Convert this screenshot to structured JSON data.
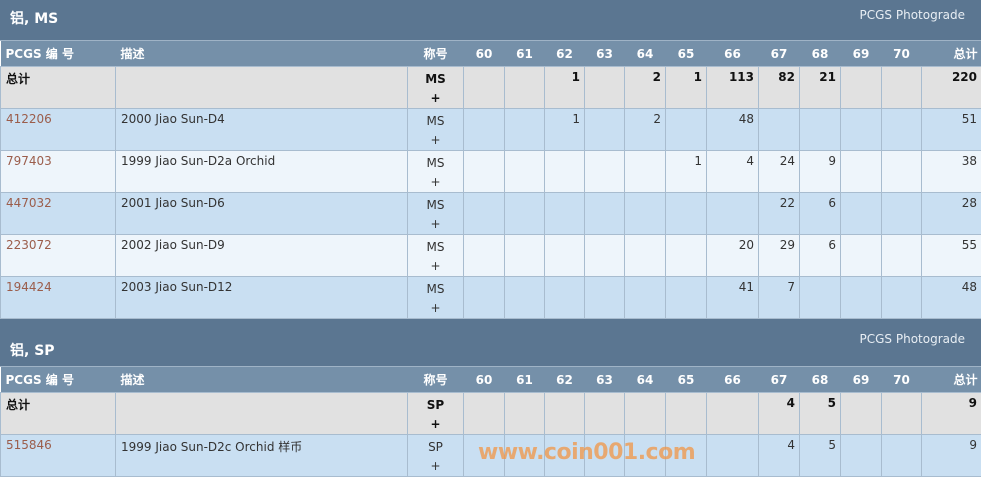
{
  "grade_columns": [
    "60",
    "61",
    "62",
    "63",
    "64",
    "65",
    "66",
    "67",
    "68",
    "69",
    "70"
  ],
  "headers": {
    "id": "PCGS 编 号",
    "desc": "描述",
    "designation": "称号",
    "total": "总计"
  },
  "sections": [
    {
      "title": "铝, MS",
      "photograde": "PCGS Photograde",
      "total_row": {
        "label": "总计",
        "designation": "MS",
        "plus": "+",
        "counts": [
          "",
          "",
          "1",
          "",
          "2",
          "1",
          "113",
          "82",
          "21",
          "",
          ""
        ],
        "total": "220"
      },
      "rows": [
        {
          "id": "412206",
          "desc": "2000 Jiao Sun-D4",
          "designation": "MS",
          "plus": "+",
          "counts": [
            "",
            "",
            "1",
            "",
            "2",
            "",
            "48",
            "",
            "",
            "",
            ""
          ],
          "total": "51"
        },
        {
          "id": "797403",
          "desc": "1999 Jiao Sun-D2a Orchid",
          "designation": "MS",
          "plus": "+",
          "counts": [
            "",
            "",
            "",
            "",
            "",
            "1",
            "4",
            "24",
            "9",
            "",
            ""
          ],
          "total": "38"
        },
        {
          "id": "447032",
          "desc": "2001 Jiao Sun-D6",
          "designation": "MS",
          "plus": "+",
          "counts": [
            "",
            "",
            "",
            "",
            "",
            "",
            "",
            "22",
            "6",
            "",
            ""
          ],
          "total": "28"
        },
        {
          "id": "223072",
          "desc": "2002 Jiao Sun-D9",
          "designation": "MS",
          "plus": "+",
          "counts": [
            "",
            "",
            "",
            "",
            "",
            "",
            "20",
            "29",
            "6",
            "",
            ""
          ],
          "total": "55"
        },
        {
          "id": "194424",
          "desc": "2003 Jiao Sun-D12",
          "designation": "MS",
          "plus": "+",
          "counts": [
            "",
            "",
            "",
            "",
            "",
            "",
            "41",
            "7",
            "",
            "",
            ""
          ],
          "total": "48"
        }
      ]
    },
    {
      "title": "铝, SP",
      "photograde": "PCGS Photograde",
      "total_row": {
        "label": "总计",
        "designation": "SP",
        "plus": "+",
        "counts": [
          "",
          "",
          "",
          "",
          "",
          "",
          "",
          "4",
          "5",
          "",
          ""
        ],
        "total": "9"
      },
      "rows": [
        {
          "id": "515846",
          "desc": "1999 Jiao Sun-D2c Orchid 样币",
          "designation": "SP",
          "plus": "+",
          "counts": [
            "",
            "",
            "",
            "",
            "",
            "",
            "",
            "4",
            "5",
            "",
            ""
          ],
          "total": "9"
        }
      ]
    }
  ],
  "watermark": "www.coin001.com"
}
